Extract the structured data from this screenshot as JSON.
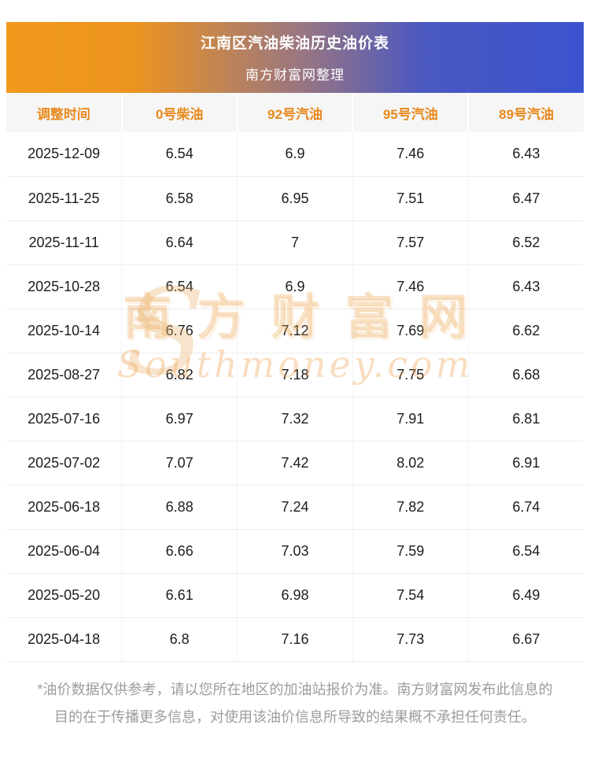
{
  "header": {
    "title": "江南区汽油柴油历史油价表",
    "subtitle": "南方财富网整理"
  },
  "chart_data": {
    "type": "table",
    "columns": [
      "调整时间",
      "0号柴油",
      "92号汽油",
      "95号汽油",
      "89号汽油"
    ],
    "rows": [
      [
        "2025-12-09",
        "6.54",
        "6.9",
        "7.46",
        "6.43"
      ],
      [
        "2025-11-25",
        "6.58",
        "6.95",
        "7.51",
        "6.47"
      ],
      [
        "2025-11-11",
        "6.64",
        "7",
        "7.57",
        "6.52"
      ],
      [
        "2025-10-28",
        "6.54",
        "6.9",
        "7.46",
        "6.43"
      ],
      [
        "2025-10-14",
        "6.76",
        "7.12",
        "7.69",
        "6.62"
      ],
      [
        "2025-08-27",
        "6.82",
        "7.18",
        "7.75",
        "6.68"
      ],
      [
        "2025-07-16",
        "6.97",
        "7.32",
        "7.91",
        "6.81"
      ],
      [
        "2025-07-02",
        "7.07",
        "7.42",
        "8.02",
        "6.91"
      ],
      [
        "2025-06-18",
        "6.88",
        "7.24",
        "7.82",
        "6.74"
      ],
      [
        "2025-06-04",
        "6.66",
        "7.03",
        "7.59",
        "6.54"
      ],
      [
        "2025-05-20",
        "6.61",
        "6.98",
        "7.54",
        "6.49"
      ],
      [
        "2025-04-18",
        "6.8",
        "7.16",
        "7.73",
        "6.67"
      ]
    ],
    "title": "江南区汽油柴油历史油价表"
  },
  "watermark": {
    "flourish": "S",
    "cn": "南方财富网",
    "en": "Southmoney.com"
  },
  "footer": {
    "disclaimer": "*油价数据仅供参考，请以您所在地区的加油站报价为准。南方财富网发布此信息的目的在于传播更多信息，对使用该油价信息所导致的结果概不承担任何责任。"
  },
  "colors": {
    "banner_gradient_start": "#f0991b",
    "banner_gradient_end": "#3a53cf",
    "table_header_text": "#e8891d",
    "table_header_bg": "#f6f6f6",
    "body_text": "#1c1c1c",
    "footer_text": "#9c9c9c",
    "watermark": "#ea9e46"
  }
}
